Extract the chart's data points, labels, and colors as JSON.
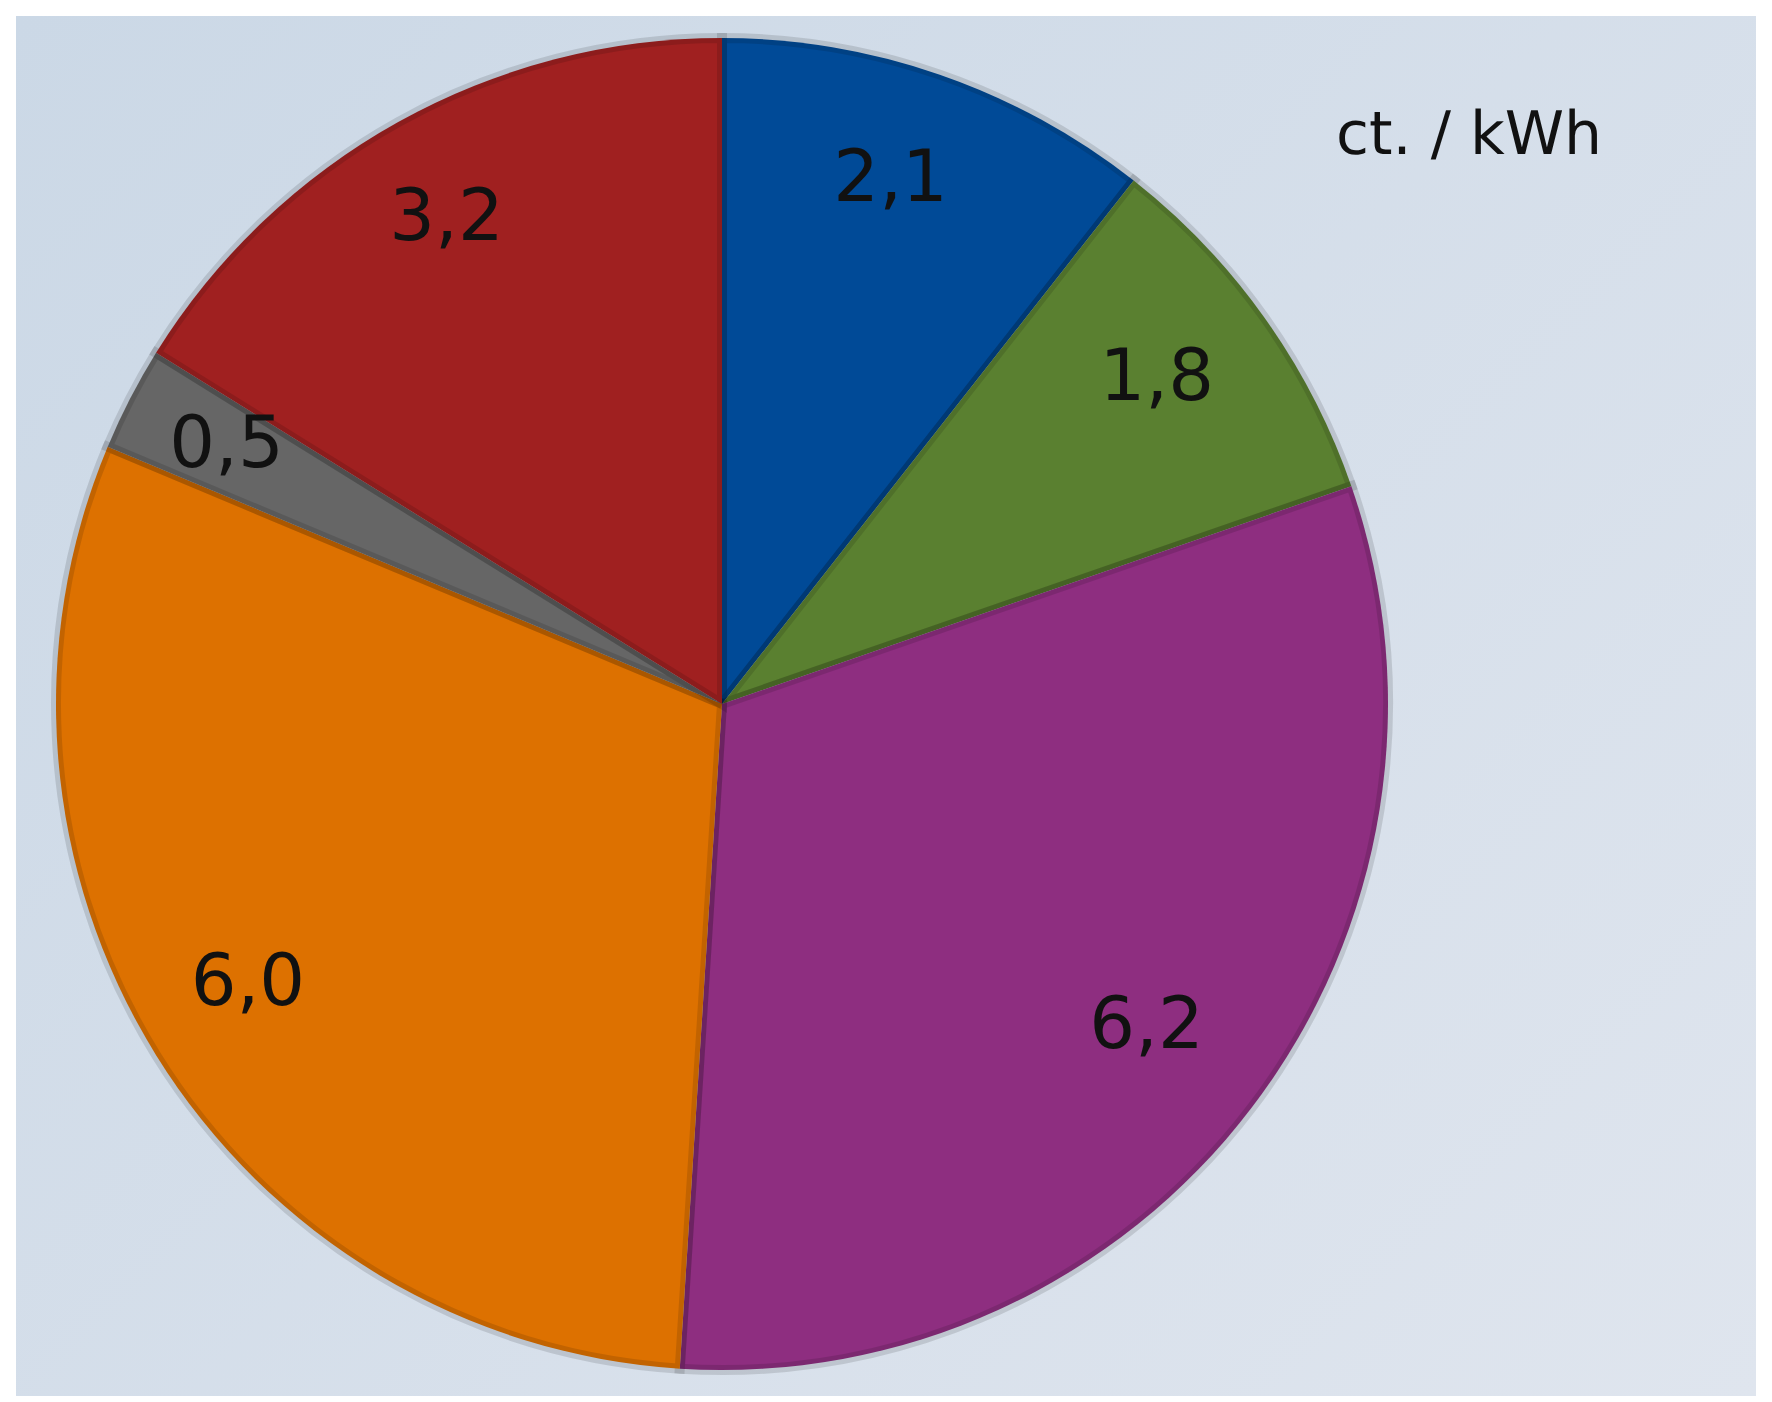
{
  "chart_data": {
    "type": "pie",
    "categories": [
      null,
      null,
      null,
      null,
      null,
      null
    ],
    "values": [
      2.1,
      1.8,
      6.2,
      6.0,
      0.5,
      3.2
    ],
    "value_labels": [
      "2,1",
      "1,8",
      "6,2",
      "6,0",
      "0,5",
      "3,2"
    ],
    "colors": [
      "#004a97",
      "#5a8030",
      "#8e2e80",
      "#dd7100",
      "#666666",
      "#a02020"
    ],
    "annotations": [
      "ct. / kWh"
    ]
  }
}
